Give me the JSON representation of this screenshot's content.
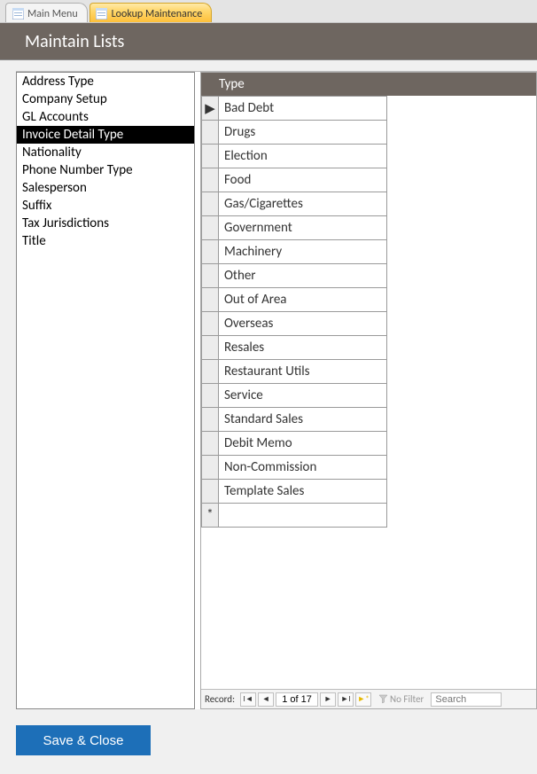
{
  "tabs": [
    {
      "label": "Main Menu",
      "active": false
    },
    {
      "label": "Lookup Maintenance",
      "active": true
    }
  ],
  "header": {
    "title": "Maintain Lists"
  },
  "listbox": {
    "items": [
      "Address Type",
      "Company Setup",
      "GL Accounts",
      "Invoice Detail Type",
      "Nationality",
      "Phone Number Type",
      "Salesperson",
      "Suffix",
      "Tax Jurisdictions",
      "Title"
    ],
    "selected": "Invoice Detail Type"
  },
  "subform": {
    "column_header": "Type",
    "rows": [
      "Bad Debt",
      "Drugs",
      "Election",
      "Food",
      "Gas/Cigarettes",
      "Government",
      "Machinery",
      "Other",
      "Out of Area",
      "Overseas",
      "Resales",
      "Restaurant Utils",
      "Service",
      "Standard Sales",
      "Debit Memo",
      "Non-Commission",
      "Template Sales"
    ],
    "current_row_marker": "▶",
    "new_row_marker": "*"
  },
  "nav": {
    "label": "Record:",
    "position": "1 of 17",
    "filter_label": "No Filter",
    "search_placeholder": "Search"
  },
  "buttons": {
    "save_close": "Save & Close"
  },
  "colors": {
    "header_bg": "#6e6660",
    "accent": "#1d6fb8",
    "tab_active_grad_top": "#ffe9a8",
    "tab_active_grad_bottom": "#fdbf3a"
  }
}
